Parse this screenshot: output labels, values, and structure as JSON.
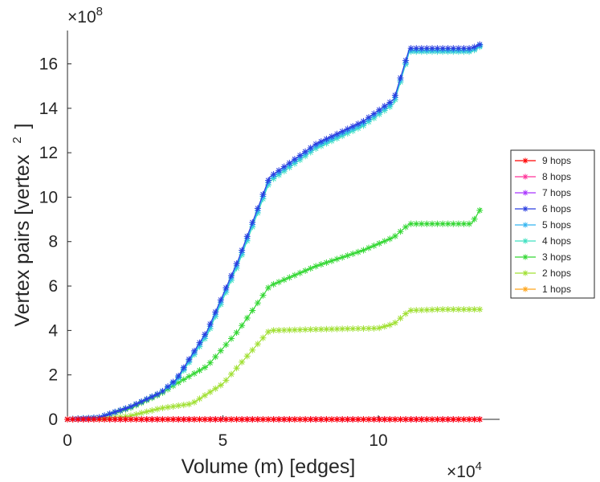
{
  "chart_data": {
    "type": "line",
    "title": "",
    "xlabel": "Volume (m) [edges]",
    "ylabel_main": "Vertex pairs [vertex",
    "ylabel_sup": "2",
    "ylabel_close": "]",
    "x_multiplier": {
      "base": "×10",
      "power": "4"
    },
    "y_multiplier": {
      "base": "×10",
      "power": "8"
    },
    "xlim": [
      0,
      13.9
    ],
    "ylim": [
      0,
      17.5
    ],
    "x_ticks": [
      0,
      5,
      10
    ],
    "x_tick_labels": [
      "0",
      "5",
      "10"
    ],
    "y_ticks": [
      0,
      2,
      4,
      6,
      8,
      10,
      12,
      14,
      16
    ],
    "y_tick_labels": [
      "0",
      "2",
      "4",
      "6",
      "8",
      "10",
      "12",
      "14",
      "16"
    ],
    "grid": false,
    "legend_position": "right",
    "marker": "asterisk",
    "series": [
      {
        "name": "9 hops",
        "color": "#ff0000",
        "x": [
          0,
          13.3
        ],
        "values": [
          0,
          0
        ]
      },
      {
        "name": "8 hops",
        "color": "#ff3399",
        "x": [
          0,
          13.3
        ],
        "values": [
          0,
          0
        ]
      },
      {
        "name": "7 hops",
        "color": "#a833ff",
        "x": [
          0,
          13.3
        ],
        "values": [
          0,
          0
        ]
      },
      {
        "name": "6 hops",
        "color": "#2a3ee0",
        "x": [
          0,
          1,
          2,
          3,
          3.5,
          4.5,
          5.5,
          6.5,
          8,
          9.5,
          10.5,
          11,
          12,
          13,
          13.3
        ],
        "values": [
          0,
          0.08,
          0.55,
          1.2,
          1.8,
          4.0,
          7.2,
          10.9,
          12.4,
          13.4,
          14.4,
          16.7,
          16.7,
          16.7,
          16.9
        ]
      },
      {
        "name": "5 hops",
        "color": "#33b5f0",
        "x": [
          0,
          1,
          2,
          3,
          3.5,
          4.5,
          5.5,
          6.5,
          8,
          9.5,
          10.5,
          11,
          12,
          13,
          13.3
        ],
        "values": [
          0,
          0.08,
          0.55,
          1.2,
          1.75,
          3.9,
          7.1,
          10.8,
          12.3,
          13.3,
          14.3,
          16.6,
          16.6,
          16.6,
          16.85
        ]
      },
      {
        "name": "4 hops",
        "color": "#3de0c0",
        "x": [
          0,
          1,
          2,
          3,
          3.5,
          4.5,
          5.5,
          6.5,
          8,
          9.5,
          10.5,
          11,
          12,
          13,
          13.3
        ],
        "values": [
          0,
          0.08,
          0.55,
          1.2,
          1.7,
          3.8,
          7.0,
          10.7,
          12.2,
          13.2,
          14.2,
          16.55,
          16.55,
          16.55,
          16.8
        ]
      },
      {
        "name": "3 hops",
        "color": "#33d733",
        "x": [
          0,
          1,
          2,
          3,
          3.5,
          4.5,
          5.5,
          6.5,
          8,
          9.5,
          10.5,
          11,
          12,
          13,
          13.3
        ],
        "values": [
          0,
          0.08,
          0.5,
          1.15,
          1.6,
          2.4,
          4.0,
          6.0,
          6.9,
          7.6,
          8.2,
          8.8,
          8.8,
          8.8,
          9.5
        ]
      },
      {
        "name": "2 hops",
        "color": "#a0e033",
        "x": [
          0,
          1,
          2,
          3,
          4,
          5,
          6,
          6.5,
          8,
          10,
          10.5,
          11,
          12,
          13.3
        ],
        "values": [
          0,
          0.02,
          0.15,
          0.5,
          0.7,
          1.6,
          3.2,
          4.0,
          4.05,
          4.1,
          4.3,
          4.9,
          4.95,
          4.95
        ]
      },
      {
        "name": "1 hops",
        "color": "#ffa51a",
        "x": [
          0,
          13.3
        ],
        "values": [
          0,
          0
        ]
      }
    ]
  }
}
